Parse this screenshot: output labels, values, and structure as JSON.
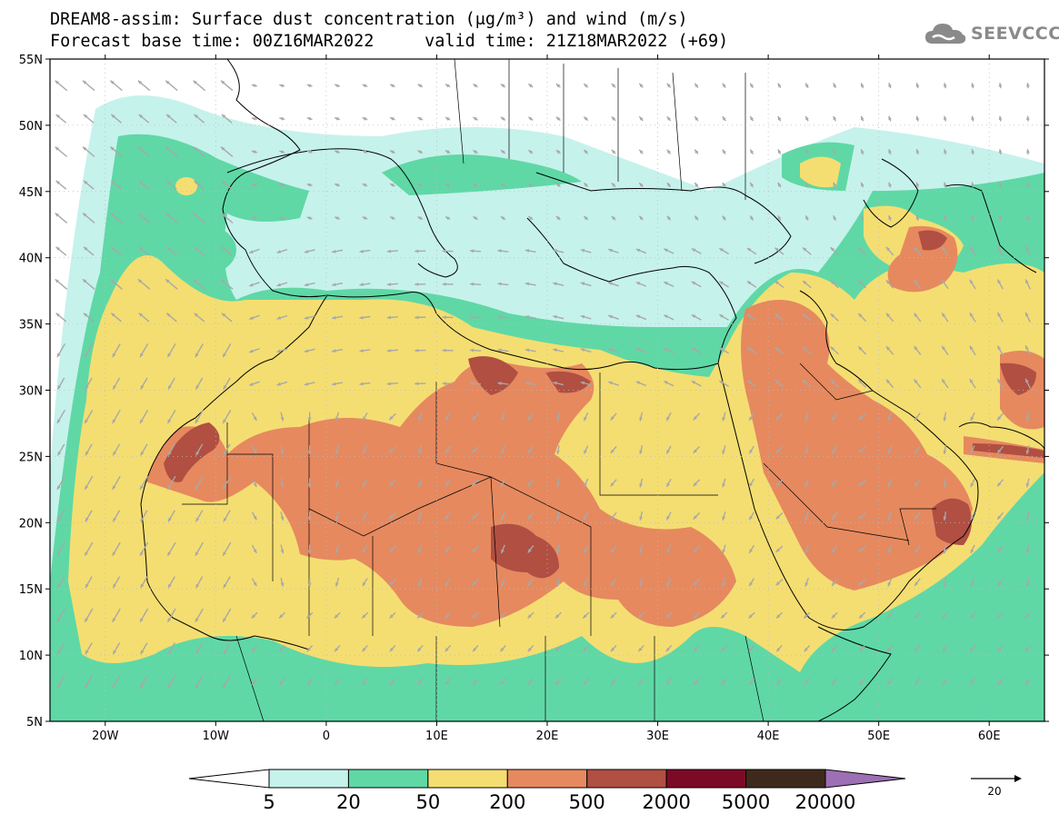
{
  "header": {
    "title_line1": "DREAM8-assim: Surface dust concentration (μg/m³) and wind (m/s)",
    "title_line2": "Forecast base time: 00Z16MAR2022     valid time: 21Z18MAR2022 (+69)",
    "logo_text": "SEEVCCC",
    "logo_icon": "cloud-icon"
  },
  "map": {
    "lon_range": [
      -25,
      65
    ],
    "lat_range": [
      5,
      55
    ],
    "lat_ticks": [
      "55N",
      "50N",
      "45N",
      "40N",
      "35N",
      "30N",
      "25N",
      "20N",
      "15N",
      "10N",
      "5N"
    ],
    "lon_ticks": [
      "20W",
      "10W",
      "0",
      "10E",
      "20E",
      "30E",
      "40E",
      "50E",
      "60E"
    ],
    "grid": "dotted",
    "wind_arrow_color": "#a8a8a8",
    "coast_color": "#000000"
  },
  "colorbar": {
    "levels": [
      "5",
      "20",
      "50",
      "200",
      "500",
      "2000",
      "5000",
      "20000"
    ],
    "colors": [
      "#c6f2ec",
      "#5fd8a6",
      "#f4de72",
      "#e6895f",
      "#b04f42",
      "#7c0a26",
      "#3e2a1c"
    ],
    "under_color": "#ffffff",
    "over_color": "#9d6fb4"
  },
  "wind_reference": {
    "label": "20",
    "unit_icon": "arrow-right-icon"
  }
}
